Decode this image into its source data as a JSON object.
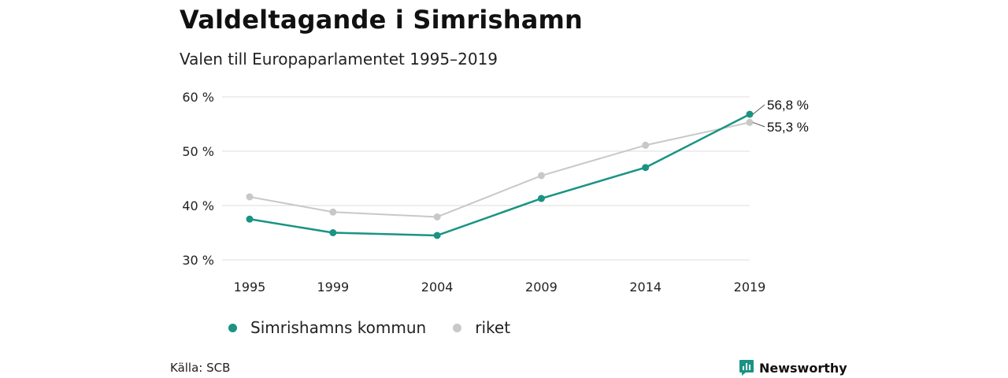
{
  "header": {
    "title": "Valdeltagande i Simrishamn",
    "subtitle": "Valen till Europaparlamentet 1995–2019"
  },
  "chart_data": {
    "type": "line",
    "x": [
      "1995",
      "1999",
      "2004",
      "2009",
      "2014",
      "2019"
    ],
    "ylim": [
      30,
      60
    ],
    "yticks": [
      30,
      40,
      50,
      60
    ],
    "ytick_labels": [
      "30 %",
      "40 %",
      "50 %",
      "60 %"
    ],
    "grid": true,
    "legend_position": "bottom",
    "series": [
      {
        "name": "Simrishamns kommun",
        "color": "#1a9383",
        "values": [
          37.5,
          35.0,
          34.5,
          41.3,
          47.0,
          56.8
        ],
        "end_label": "56,8 %"
      },
      {
        "name": "riket",
        "color": "#c8c8c8",
        "values": [
          41.6,
          38.8,
          37.9,
          45.5,
          51.1,
          55.3
        ],
        "end_label": "55,3 %"
      }
    ]
  },
  "footer": {
    "source": "Källa: SCB",
    "brand": "Newsworthy",
    "brand_color": "#1a9383"
  }
}
